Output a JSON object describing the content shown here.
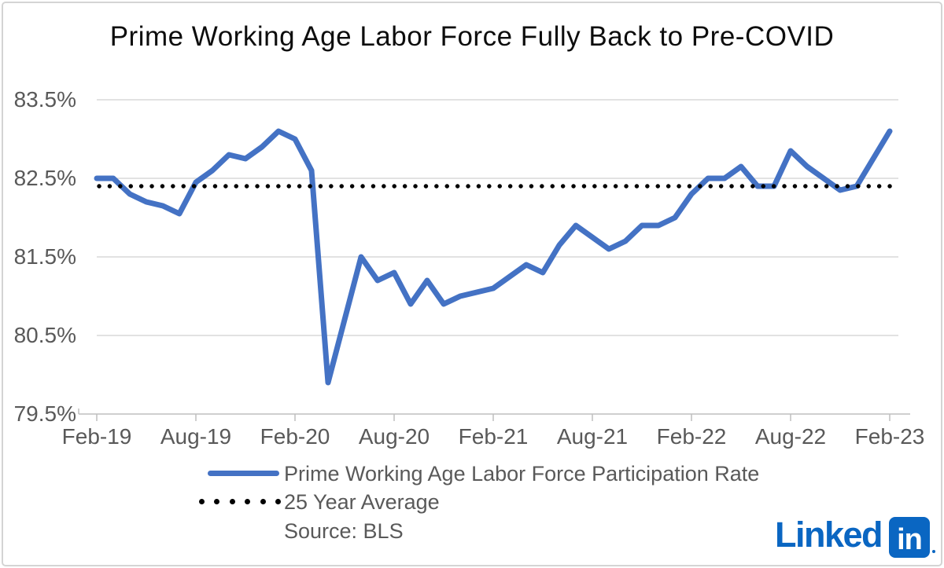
{
  "title": "Prime Working Age Labor Force Fully Back to Pre-COVID",
  "chart_data": {
    "type": "line",
    "x": [
      "Feb-19",
      "Mar-19",
      "Apr-19",
      "May-19",
      "Jun-19",
      "Jul-19",
      "Aug-19",
      "Sep-19",
      "Oct-19",
      "Nov-19",
      "Dec-19",
      "Jan-20",
      "Feb-20",
      "Mar-20",
      "Apr-20",
      "May-20",
      "Jun-20",
      "Jul-20",
      "Aug-20",
      "Sep-20",
      "Oct-20",
      "Nov-20",
      "Dec-20",
      "Jan-21",
      "Feb-21",
      "Mar-21",
      "Apr-21",
      "May-21",
      "Jun-21",
      "Jul-21",
      "Aug-21",
      "Sep-21",
      "Oct-21",
      "Nov-21",
      "Dec-21",
      "Jan-22",
      "Feb-22",
      "Mar-22",
      "Apr-22",
      "May-22",
      "Jun-22",
      "Jul-22",
      "Aug-22",
      "Sep-22",
      "Oct-22",
      "Nov-22",
      "Dec-22",
      "Jan-23",
      "Feb-23"
    ],
    "series": [
      {
        "name": "Prime Working Age Labor Force Participation Rate",
        "color": "#4472C4",
        "style": "solid",
        "values": [
          82.5,
          82.5,
          82.3,
          82.2,
          82.15,
          82.05,
          82.45,
          82.6,
          82.8,
          82.75,
          82.9,
          83.1,
          83.0,
          82.6,
          79.9,
          80.7,
          81.5,
          81.2,
          81.3,
          80.9,
          81.2,
          80.9,
          81.0,
          81.05,
          81.1,
          81.25,
          81.4,
          81.3,
          81.65,
          81.9,
          81.75,
          81.6,
          81.7,
          81.9,
          81.9,
          82.0,
          82.3,
          82.5,
          82.5,
          82.65,
          82.4,
          82.4,
          82.85,
          82.65,
          82.5,
          82.35,
          82.4,
          82.75,
          83.1
        ]
      },
      {
        "name": "25 Year Average",
        "color": "#000000",
        "style": "dotted",
        "value": 82.4
      }
    ],
    "ylim": [
      79.5,
      83.5
    ],
    "y_tick_labels": [
      "83.5%",
      "82.5%",
      "81.5%",
      "80.5%",
      "79.5%"
    ],
    "x_tick_labels": [
      "Feb-19",
      "Aug-19",
      "Feb-20",
      "Aug-20",
      "Feb-21",
      "Aug-21",
      "Feb-22",
      "Aug-22",
      "Feb-23"
    ],
    "grid": "horizontal gridlines at each y tick",
    "legend_position": "bottom-left"
  },
  "legend": {
    "items": [
      {
        "label": "Prime Working Age Labor Force Participation Rate",
        "swatch": "line",
        "color": "#4472C4"
      },
      {
        "label": "25 Year Average",
        "swatch": "dots",
        "color": "#000000"
      }
    ]
  },
  "source_note": "Source: BLS",
  "branding": {
    "wordmark": "Linked",
    "badge": "in",
    "color": "#0A66C2"
  },
  "colors": {
    "series_line": "#4472C4",
    "average_line": "#000000",
    "gridline": "#d9d9d9",
    "axis": "#bfbfbf",
    "text_gray": "#595959",
    "title_text": "#0d0d0d",
    "linkedin_blue": "#0A66C2"
  }
}
